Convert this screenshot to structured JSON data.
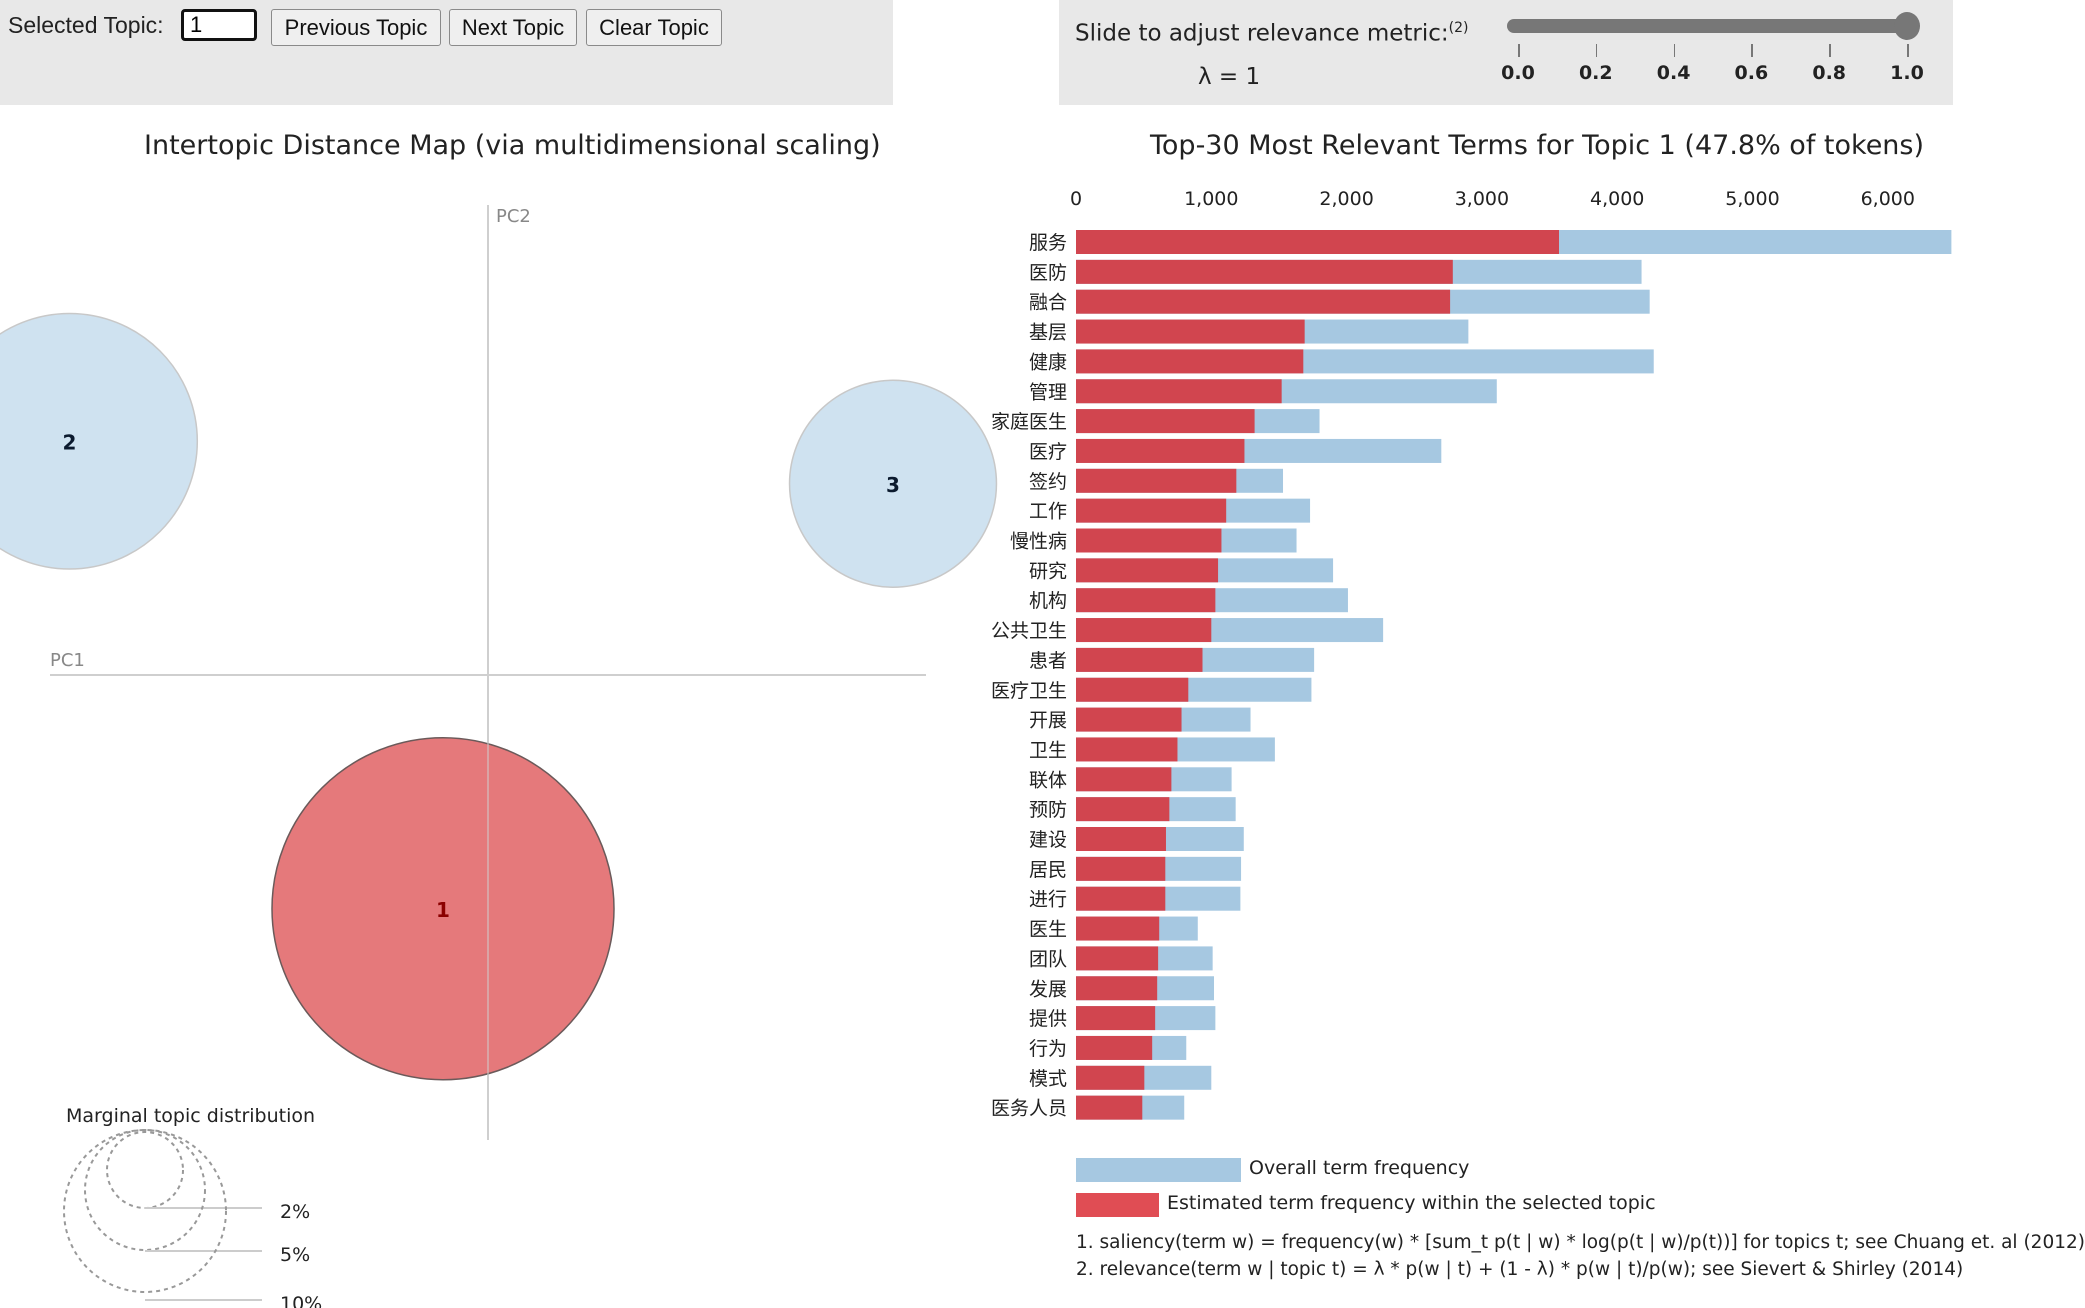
{
  "controls": {
    "selected_topic_label": "Selected Topic:",
    "selected_topic_value": "1",
    "previous_label": "Previous Topic",
    "next_label": "Next Topic",
    "clear_label": "Clear Topic"
  },
  "slider": {
    "title": "Slide to adjust relevance metric:",
    "title_superscript": "(2)",
    "lambda_text": "λ = 1",
    "value": 1.0,
    "min": 0.0,
    "max": 1.0,
    "ticks": [
      "0.0",
      "0.2",
      "0.4",
      "0.6",
      "0.8",
      "1.0"
    ]
  },
  "colors": {
    "selected_topic": "#e5797b",
    "unselected_topic": "#cfe2f0",
    "overall_bar": "#a6c8e1",
    "topic_bar": "#d1454f",
    "panel_bg": "#e8e8e8"
  },
  "chart_data": [
    {
      "type": "scatter",
      "title": "Intertopic Distance Map (via multidimensional scaling)",
      "xlabel": "PC1",
      "ylabel": "PC2",
      "grid": false,
      "topics": [
        {
          "id": "1",
          "pc1": -0.1,
          "pc2": -0.55,
          "marginal_pct": 47.8,
          "selected": true
        },
        {
          "id": "2",
          "pc1": -0.93,
          "pc2": 0.55,
          "marginal_pct": 26.7,
          "selected": false
        },
        {
          "id": "3",
          "pc1": 0.9,
          "pc2": 0.45,
          "marginal_pct": 17.5,
          "selected": false
        }
      ],
      "size_legend": {
        "title": "Marginal topic distribution",
        "entries": [
          "2%",
          "5%",
          "10%"
        ]
      }
    },
    {
      "type": "bar",
      "orientation": "horizontal",
      "title": "Top-30 Most Relevant Terms for Topic 1 (47.8% of tokens)",
      "xlim": [
        0,
        6500
      ],
      "xticks": [
        "0",
        "1,000",
        "2,000",
        "3,000",
        "4,000",
        "5,000",
        "6,000"
      ],
      "xtick_values": [
        0,
        1000,
        2000,
        3000,
        4000,
        5000,
        6000
      ],
      "categories": [
        "服务",
        "医防",
        "融合",
        "基层",
        "健康",
        "管理",
        "家庭医生",
        "医疗",
        "签约",
        "工作",
        "慢性病",
        "研究",
        "机构",
        "公共卫生",
        "患者",
        "医疗卫生",
        "开展",
        "卫生",
        "联体",
        "预防",
        "建设",
        "居民",
        "进行",
        "医生",
        "团队",
        "发展",
        "提供",
        "行为",
        "模式",
        "医务人员"
      ],
      "series": [
        {
          "name": "Overall term frequency",
          "values": [
            6470,
            4180,
            4240,
            2900,
            4270,
            3110,
            1800,
            2700,
            1530,
            1730,
            1630,
            1900,
            2010,
            2270,
            1760,
            1740,
            1290,
            1470,
            1150,
            1180,
            1240,
            1220,
            1215,
            900,
            1010,
            1020,
            1030,
            815,
            1000,
            800
          ]
        },
        {
          "name": "Estimated term frequency within the selected topic",
          "values": [
            3570,
            2785,
            2765,
            1690,
            1680,
            1520,
            1320,
            1245,
            1185,
            1110,
            1075,
            1050,
            1030,
            1000,
            935,
            830,
            780,
            750,
            705,
            690,
            665,
            660,
            660,
            615,
            607,
            600,
            585,
            563,
            505,
            490
          ]
        }
      ]
    }
  ],
  "legend": {
    "overall": "Overall term frequency",
    "topic": "Estimated term frequency within the selected topic"
  },
  "footnotes": [
    "1. saliency(term w) = frequency(w) * [sum_t p(t | w) * log(p(t | w)/p(t))] for topics t; see Chuang et. al (2012)",
    "2. relevance(term w | topic t) = λ * p(w | t) + (1 - λ) * p(w | t)/p(w); see Sievert & Shirley (2014)"
  ]
}
